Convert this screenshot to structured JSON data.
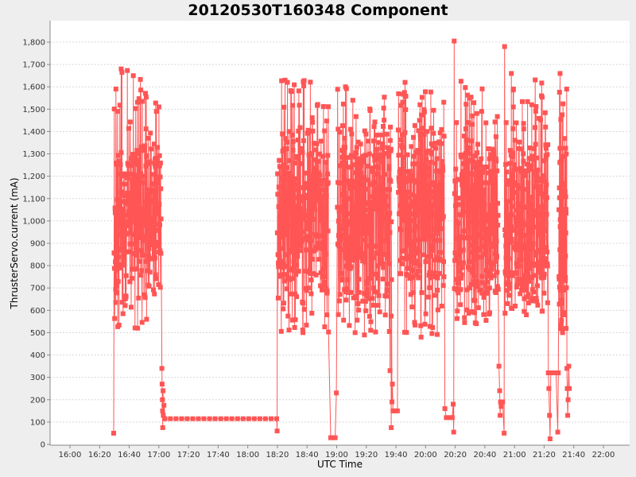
{
  "chart_data": {
    "type": "line",
    "title": "20120530T160348 Component",
    "xlabel": "UTC Time",
    "ylabel": "ThrusterServo.current (mA)",
    "series_color": "#ff5555",
    "marker": "square",
    "grid": true,
    "legend": false,
    "ylim": [
      0,
      1850
    ],
    "y_ticks": [
      0,
      100,
      200,
      300,
      400,
      500,
      600,
      700,
      800,
      900,
      1000,
      1100,
      1200,
      1300,
      1400,
      1500,
      1600,
      1700,
      1800
    ],
    "y_tick_labels": [
      "0",
      "100",
      "200",
      "300",
      "400",
      "500",
      "600",
      "700",
      "800",
      "900",
      "1,000",
      "1,100",
      "1,200",
      "1,300",
      "1,400",
      "1,500",
      "1,600",
      "1,700",
      "1,800"
    ],
    "x_range_minutes_from_1600": [
      -13.5,
      377.5
    ],
    "x_ticks_minutes_from_1600": [
      0,
      20,
      40,
      60,
      80,
      100,
      120,
      140,
      160,
      180,
      200,
      220,
      240,
      260,
      280,
      300,
      320,
      340,
      360
    ],
    "x_tick_labels": [
      "16:00",
      "16:20",
      "16:40",
      "17:00",
      "17:20",
      "17:40",
      "18:00",
      "18:20",
      "18:40",
      "19:00",
      "19:20",
      "19:40",
      "20:00",
      "20:20",
      "20:40",
      "21:00",
      "21:20",
      "21:40",
      "22:00"
    ],
    "series": [
      {
        "name": "ThrusterServo.current",
        "segments": [
          {
            "kind": "point",
            "t": "16:29.5",
            "value": 50
          },
          {
            "kind": "burst",
            "start": "16:29.8",
            "end": "17:01.5",
            "min": 520,
            "max": 1680,
            "n": 260,
            "seed": 11
          },
          {
            "kind": "points",
            "values": [
              [
                "17:02.0",
                340
              ],
              [
                "17:02.2",
                270
              ],
              [
                "17:02.4",
                200
              ],
              [
                "17:02.5",
                150
              ],
              [
                "17:02.6",
                75
              ],
              [
                "17:02.8",
                240
              ],
              [
                "17:03.0",
                130
              ],
              [
                "17:03.4",
                175
              ],
              [
                "17:04.0",
                115
              ]
            ]
          },
          {
            "kind": "flat",
            "start": "17:04.0",
            "end": "18:19.5",
            "value": 115,
            "n": 20
          },
          {
            "kind": "point",
            "t": "18:19.8",
            "value": 60
          },
          {
            "kind": "burst",
            "start": "18:20.0",
            "end": "18:54.5",
            "min": 500,
            "max": 1630,
            "n": 280,
            "seed": 23
          },
          {
            "kind": "points",
            "values": [
              [
                "18:56.0",
                30
              ],
              [
                "18:57.5",
                30
              ],
              [
                "18:59.0",
                30
              ],
              [
                "18:59.8",
                230
              ]
            ]
          },
          {
            "kind": "burst",
            "start": "19:00.5",
            "end": "19:37.0",
            "min": 490,
            "max": 1600,
            "n": 300,
            "seed": 37
          },
          {
            "kind": "points",
            "values": [
              [
                "19:36.0",
                330
              ],
              [
                "19:36.8",
                75
              ],
              [
                "19:37.3",
                190
              ],
              [
                "19:37.6",
                270
              ],
              [
                "19:38.0",
                150
              ],
              [
                "19:39.5",
                150
              ],
              [
                "19:41.0",
                150
              ]
            ]
          },
          {
            "kind": "burst",
            "start": "19:41.5",
            "end": "20:12.5",
            "min": 480,
            "max": 1620,
            "n": 270,
            "seed": 41
          },
          {
            "kind": "points",
            "values": [
              [
                "20:13.0",
                160
              ],
              [
                "20:14.0",
                120
              ],
              [
                "20:16.5",
                120
              ],
              [
                "20:18.0",
                120
              ],
              [
                "20:18.6",
                180
              ],
              [
                "20:19.0",
                55
              ]
            ]
          },
          {
            "kind": "point",
            "t": "20:19.3",
            "value": 1805
          },
          {
            "kind": "burst",
            "start": "20:19.5",
            "end": "20:49.0",
            "min": 540,
            "max": 1625,
            "n": 260,
            "seed": 53
          },
          {
            "kind": "points",
            "values": [
              [
                "20:49.5",
                350
              ],
              [
                "20:50.0",
                240
              ],
              [
                "20:50.3",
                130
              ],
              [
                "20:50.6",
                190
              ],
              [
                "20:51.0",
                170
              ],
              [
                "20:52.0",
                190
              ],
              [
                "20:53.0",
                50
              ]
            ]
          },
          {
            "kind": "point",
            "t": "20:53.3",
            "value": 1780
          },
          {
            "kind": "burst",
            "start": "20:53.5",
            "end": "21:22.5",
            "min": 580,
            "max": 1660,
            "n": 260,
            "seed": 67
          },
          {
            "kind": "points",
            "values": [
              [
                "21:22.8",
                320
              ],
              [
                "21:23.2",
                250
              ],
              [
                "21:23.6",
                130
              ],
              [
                "21:24.0",
                25
              ],
              [
                "21:24.5",
                320
              ],
              [
                "21:26.0",
                320
              ],
              [
                "21:28.0",
                320
              ],
              [
                "21:29.2",
                55
              ],
              [
                "21:29.6",
                320
              ]
            ]
          },
          {
            "kind": "burst",
            "start": "21:30.0",
            "end": "21:35.0",
            "min": 500,
            "max": 1660,
            "n": 70,
            "seed": 79
          },
          {
            "kind": "points",
            "values": [
              [
                "21:35.2",
                1590
              ],
              [
                "21:35.4",
                340
              ],
              [
                "21:35.6",
                250
              ],
              [
                "21:35.9",
                130
              ],
              [
                "21:36.2",
                200
              ],
              [
                "21:36.6",
                350
              ],
              [
                "21:37.0",
                250
              ]
            ]
          }
        ]
      }
    ]
  }
}
